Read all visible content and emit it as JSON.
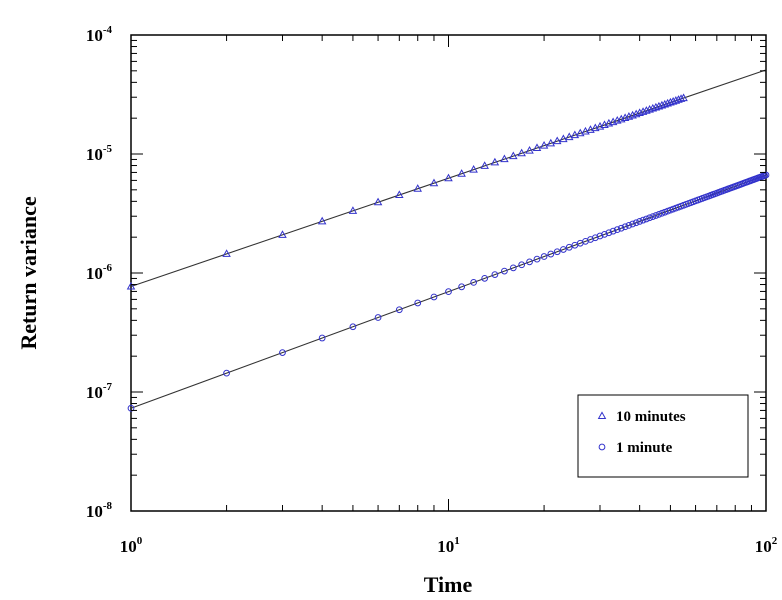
{
  "chart_data": {
    "type": "scatter",
    "title": "",
    "xlabel": "Time",
    "ylabel": "Return variance",
    "x_scale": "log",
    "y_scale": "log",
    "xlim": [
      1,
      100
    ],
    "ylim": [
      1e-08,
      0.0001
    ],
    "grid": false,
    "legend_position": "bottom-right",
    "x_ticks": [
      {
        "value": 1,
        "base": "10",
        "exp": "0"
      },
      {
        "value": 10,
        "base": "10",
        "exp": "1"
      },
      {
        "value": 100,
        "base": "10",
        "exp": "2"
      }
    ],
    "y_ticks": [
      {
        "value": 1e-08,
        "base": "10",
        "exp": "-8"
      },
      {
        "value": 1e-07,
        "base": "10",
        "exp": "-7"
      },
      {
        "value": 1e-06,
        "base": "10",
        "exp": "-6"
      },
      {
        "value": 1e-05,
        "base": "10",
        "exp": "-5"
      },
      {
        "value": 0.0001,
        "base": "10",
        "exp": "-4"
      }
    ],
    "series": [
      {
        "name": "10 minutes",
        "marker": "triangle",
        "color": "#3333cc",
        "x_range": [
          1,
          55
        ],
        "fit": {
          "coefficient": 7.7e-07,
          "exponent": 0.91
        }
      },
      {
        "name": "1 minute",
        "marker": "circle",
        "color": "#3333cc",
        "x_range": [
          1,
          100
        ],
        "fit": {
          "coefficient": 7.3e-08,
          "exponent": 0.98
        }
      }
    ],
    "fit_line_color": "#333333"
  }
}
